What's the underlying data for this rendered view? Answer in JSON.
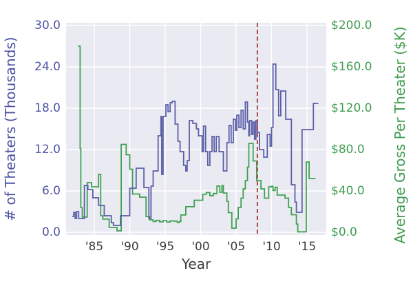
{
  "figure": {
    "xlabel": "Year",
    "left_axis": {
      "label": "# of Theaters (Thousands)",
      "color": "#4e54a3",
      "tick_labels": [
        "0.0",
        "6.0",
        "12.0",
        "18.0",
        "24.0",
        "30.0"
      ],
      "tick_values": [
        0,
        6,
        12,
        18,
        24,
        30
      ]
    },
    "right_axis": {
      "label": "Average Gross Per Theater ($K)",
      "color": "#3f9d51",
      "tick_labels": [
        "$0.0",
        "$40.0",
        "$80.0",
        "$120.0",
        "$160.0",
        "$200.0"
      ],
      "tick_values": [
        0,
        40,
        80,
        120,
        160,
        200
      ]
    },
    "x_axis": {
      "tick_labels": [
        "'85",
        "'90",
        "'95",
        "'00",
        "'05",
        "'10",
        "'15"
      ],
      "tick_values": [
        1985,
        1990,
        1995,
        2000,
        2005,
        2010,
        2015
      ]
    }
  },
  "chart_data": {
    "type": "line",
    "style": "step",
    "xlabel": "Year",
    "x_range": [
      1981.0,
      2017.7
    ],
    "left_ylabel": "# of Theaters (Thousands)",
    "left_ylim": [
      0,
      30
    ],
    "right_ylabel": "Average Gross Per Theater ($K)",
    "right_ylim": [
      0,
      200
    ],
    "grid": true,
    "plot_bg": "#eaeaf2",
    "grid_color": "#ffffff",
    "annotations": [
      {
        "type": "vline",
        "x": 2008,
        "color": "#a84b4b",
        "line_style": "dashed"
      }
    ],
    "series": [
      {
        "name": "theaters_thousands",
        "axis": "left",
        "color": "#5a5fa8",
        "end_x": 2016.6,
        "points": [
          [
            1981.9,
            2.3
          ],
          [
            1982.1,
            2.9
          ],
          [
            1982.3,
            2.0
          ],
          [
            1982.5,
            3.0
          ],
          [
            1982.8,
            2.0
          ],
          [
            1983.6,
            6.8
          ],
          [
            1984.1,
            6.2
          ],
          [
            1984.8,
            5.0
          ],
          [
            1985.6,
            3.9
          ],
          [
            1986.4,
            2.4
          ],
          [
            1987.4,
            1.4
          ],
          [
            1987.7,
            1.0
          ],
          [
            1988.7,
            2.4
          ],
          [
            1990.0,
            6.4
          ],
          [
            1990.9,
            9.3
          ],
          [
            1992.0,
            6.5
          ],
          [
            1992.7,
            2.0
          ],
          [
            1993.0,
            6.7
          ],
          [
            1993.3,
            8.9
          ],
          [
            1994.0,
            14.0
          ],
          [
            1994.4,
            16.8
          ],
          [
            1994.5,
            8.4
          ],
          [
            1994.7,
            16.8
          ],
          [
            1995.1,
            18.5
          ],
          [
            1995.4,
            17.5
          ],
          [
            1995.7,
            18.8
          ],
          [
            1996.0,
            19.0
          ],
          [
            1996.4,
            15.7
          ],
          [
            1996.8,
            13.2
          ],
          [
            1997.1,
            11.7
          ],
          [
            1997.6,
            9.7
          ],
          [
            1997.9,
            8.9
          ],
          [
            1998.1,
            10.4
          ],
          [
            1998.4,
            16.2
          ],
          [
            1998.9,
            15.8
          ],
          [
            1999.4,
            15.0
          ],
          [
            1999.7,
            14.0
          ],
          [
            2000.2,
            11.7
          ],
          [
            2000.4,
            15.4
          ],
          [
            2000.7,
            11.7
          ],
          [
            2001.0,
            9.7
          ],
          [
            2001.3,
            11.7
          ],
          [
            2001.6,
            13.9
          ],
          [
            2001.9,
            11.7
          ],
          [
            2002.2,
            13.9
          ],
          [
            2002.6,
            11.7
          ],
          [
            2003.2,
            8.9
          ],
          [
            2003.7,
            13.0
          ],
          [
            2004.0,
            15.5
          ],
          [
            2004.3,
            13.0
          ],
          [
            2004.6,
            16.4
          ],
          [
            2004.9,
            14.8
          ],
          [
            2005.1,
            17.0
          ],
          [
            2005.4,
            15.2
          ],
          [
            2005.7,
            17.7
          ],
          [
            2006.0,
            15.0
          ],
          [
            2006.3,
            18.9
          ],
          [
            2006.6,
            16.0
          ],
          [
            2006.8,
            14.0
          ],
          [
            2006.9,
            16.2
          ],
          [
            2007.2,
            14.2
          ],
          [
            2007.4,
            16.0
          ],
          [
            2007.6,
            13.5
          ],
          [
            2007.8,
            16.2
          ],
          [
            2008.0,
            14.5
          ],
          [
            2008.3,
            12.0
          ],
          [
            2008.9,
            10.9
          ],
          [
            2009.4,
            14.2
          ],
          [
            2009.8,
            12.5
          ],
          [
            2010.0,
            15.2
          ],
          [
            2010.2,
            24.4
          ],
          [
            2010.6,
            20.7
          ],
          [
            2011.0,
            16.9
          ],
          [
            2011.3,
            20.5
          ],
          [
            2012.0,
            16.4
          ],
          [
            2012.8,
            6.9
          ],
          [
            2013.3,
            4.4
          ],
          [
            2013.5,
            2.9
          ],
          [
            2014.3,
            14.9
          ],
          [
            2015.9,
            18.7
          ]
        ]
      },
      {
        "name": "avg_gross_per_theater_k",
        "axis": "right",
        "color": "#3fa152",
        "end_x": 2016.2,
        "points": [
          [
            1982.7,
            180
          ],
          [
            1983.0,
            81
          ],
          [
            1983.1,
            24
          ],
          [
            1983.3,
            14.7
          ],
          [
            1984.0,
            48
          ],
          [
            1984.6,
            44
          ],
          [
            1985.6,
            56
          ],
          [
            1985.9,
            16
          ],
          [
            1986.2,
            12.7
          ],
          [
            1987.1,
            4.7
          ],
          [
            1988.2,
            1.5
          ],
          [
            1988.8,
            85
          ],
          [
            1989.5,
            75
          ],
          [
            1990.0,
            61
          ],
          [
            1990.4,
            37
          ],
          [
            1991.4,
            34
          ],
          [
            1992.3,
            15.3
          ],
          [
            1992.8,
            12.0
          ],
          [
            1993.3,
            10.5
          ],
          [
            1993.7,
            11.5
          ],
          [
            1994.2,
            10.2
          ],
          [
            1994.7,
            11.3
          ],
          [
            1995.2,
            10.0
          ],
          [
            1995.7,
            11.0
          ],
          [
            1996.2,
            10.8
          ],
          [
            1996.7,
            9.6
          ],
          [
            1997.0,
            10.4
          ],
          [
            1997.2,
            16.7
          ],
          [
            1997.9,
            24.7
          ],
          [
            1999.1,
            31.0
          ],
          [
            2000.3,
            36.7
          ],
          [
            2000.8,
            38.5
          ],
          [
            2001.3,
            35.5
          ],
          [
            2001.8,
            37.5
          ],
          [
            2002.3,
            44.7
          ],
          [
            2002.7,
            38.7
          ],
          [
            2003.0,
            45.3
          ],
          [
            2003.2,
            38.0
          ],
          [
            2003.7,
            30.0
          ],
          [
            2003.9,
            19.0
          ],
          [
            2004.4,
            4.0
          ],
          [
            2005.0,
            13.0
          ],
          [
            2005.3,
            24.0
          ],
          [
            2005.7,
            33.0
          ],
          [
            2006.0,
            42.0
          ],
          [
            2006.3,
            50.0
          ],
          [
            2006.6,
            63.0
          ],
          [
            2006.8,
            86.0
          ],
          [
            2007.4,
            69.0
          ],
          [
            2007.9,
            50.0
          ],
          [
            2008.5,
            42.0
          ],
          [
            2009.0,
            33.0
          ],
          [
            2009.6,
            44.0
          ],
          [
            2010.0,
            44.5
          ],
          [
            2010.2,
            40.5
          ],
          [
            2010.5,
            43.5
          ],
          [
            2010.8,
            36.0
          ],
          [
            2011.9,
            33.0
          ],
          [
            2012.4,
            24.0
          ],
          [
            2012.8,
            17.0
          ],
          [
            2013.5,
            8.0
          ],
          [
            2013.7,
            0.5
          ],
          [
            2014.9,
            68.0
          ],
          [
            2015.3,
            52.0
          ]
        ]
      }
    ]
  }
}
